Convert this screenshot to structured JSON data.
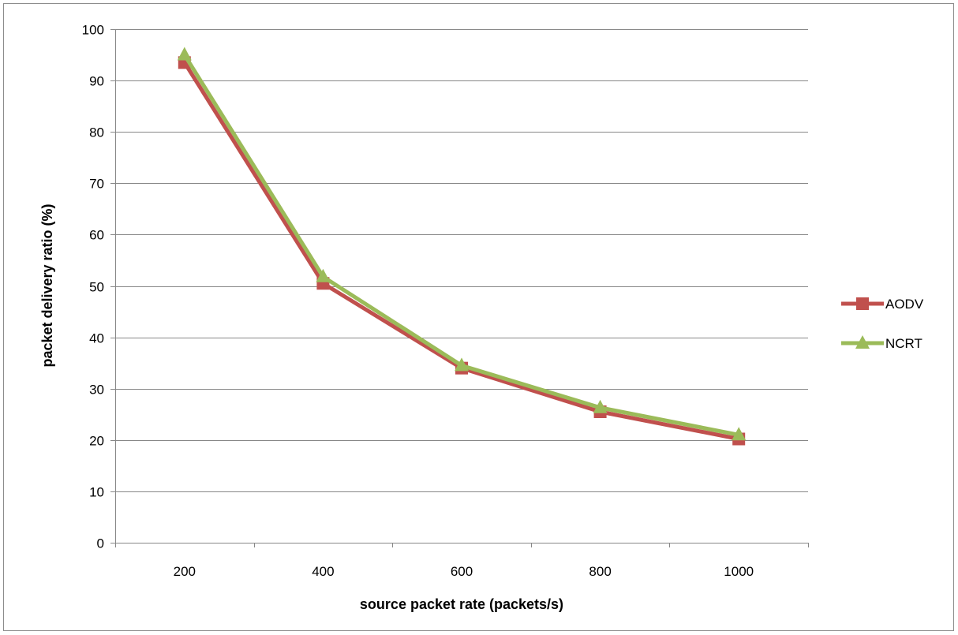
{
  "chart_data": {
    "type": "line",
    "categories": [
      "200",
      "400",
      "600",
      "800",
      "1000"
    ],
    "series": [
      {
        "name": "AODV",
        "values": [
          93.5,
          50.5,
          34,
          25.5,
          20.2
        ],
        "color": "#c0504d",
        "marker": "square"
      },
      {
        "name": "NCRT",
        "values": [
          95,
          51.8,
          34.5,
          26.3,
          21
        ],
        "color": "#9bbb59",
        "marker": "triangle"
      }
    ],
    "xlabel": "source packet rate (packets/s)",
    "ylabel": "packet delivery ratio (%)",
    "ylim": [
      0,
      100
    ],
    "yticks": [
      0,
      10,
      20,
      30,
      40,
      50,
      60,
      70,
      80,
      90,
      100
    ],
    "grid": true,
    "legend": "right"
  }
}
